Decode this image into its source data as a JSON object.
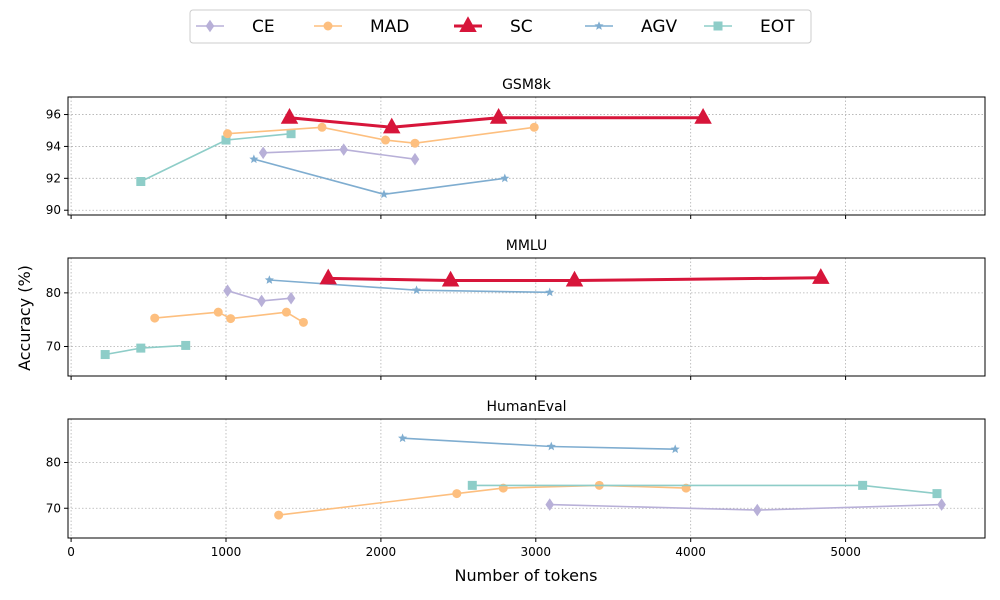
{
  "chart_data": {
    "type": "line",
    "xlabel": "Number of tokens",
    "ylabel": "Accuracy (%)",
    "xlim": [
      -20,
      5900
    ],
    "xticks": [
      0,
      1000,
      2000,
      3000,
      4000,
      5000
    ],
    "grid": true,
    "legend_position": "top-center",
    "legend": [
      {
        "name": "CE",
        "color": "#b8b0d8",
        "marker": "diamond"
      },
      {
        "name": "MAD",
        "color": "#fdbf7f",
        "marker": "circle"
      },
      {
        "name": "SC",
        "color": "#d7153a",
        "marker": "triangle"
      },
      {
        "name": "AGV",
        "color": "#7fadd0",
        "marker": "star"
      },
      {
        "name": "EOT",
        "color": "#8ecdc8",
        "marker": "square"
      }
    ],
    "panels": [
      {
        "title": "GSM8k",
        "ylim": [
          89.7,
          97.1
        ],
        "yticks": [
          90,
          92,
          94,
          96
        ],
        "series": [
          {
            "name": "EOT",
            "x": [
              450,
              1000,
              1420
            ],
            "y": [
              91.8,
              94.4,
              94.8
            ]
          },
          {
            "name": "AGV",
            "x": [
              1180,
              2020,
              2800
            ],
            "y": [
              93.2,
              91.0,
              92.0
            ]
          },
          {
            "name": "MAD",
            "x": [
              1010,
              1620,
              2030,
              2220,
              2990
            ],
            "y": [
              94.8,
              95.2,
              94.4,
              94.2,
              95.2
            ]
          },
          {
            "name": "CE",
            "x": [
              1240,
              1760,
              2220
            ],
            "y": [
              93.6,
              93.8,
              93.2
            ]
          },
          {
            "name": "SC",
            "x": [
              1410,
              2070,
              2760,
              4080
            ],
            "y": [
              95.8,
              95.2,
              95.8,
              95.8
            ]
          }
        ]
      },
      {
        "title": "MMLU",
        "ylim": [
          64.5,
          86.5
        ],
        "yticks": [
          70,
          80
        ],
        "series": [
          {
            "name": "EOT",
            "x": [
              220,
              450,
              740
            ],
            "y": [
              68.5,
              69.7,
              70.2
            ]
          },
          {
            "name": "MAD",
            "x": [
              540,
              950,
              1030,
              1390,
              1500
            ],
            "y": [
              75.3,
              76.4,
              75.2,
              76.4,
              74.5
            ]
          },
          {
            "name": "CE",
            "x": [
              1010,
              1230,
              1420
            ],
            "y": [
              80.4,
              78.5,
              79.0
            ]
          },
          {
            "name": "AGV",
            "x": [
              1280,
              2230,
              3090
            ],
            "y": [
              82.4,
              80.5,
              80.1
            ]
          },
          {
            "name": "SC",
            "x": [
              1660,
              2450,
              3250,
              4840
            ],
            "y": [
              82.7,
              82.3,
              82.3,
              82.8
            ]
          }
        ]
      },
      {
        "title": "HumanEval",
        "ylim": [
          63.5,
          89.5
        ],
        "yticks": [
          70,
          80
        ],
        "series": [
          {
            "name": "MAD",
            "x": [
              1340,
              2490,
              2790,
              3410,
              3970
            ],
            "y": [
              68.5,
              73.2,
              74.4,
              75.0,
              74.4
            ]
          },
          {
            "name": "EOT",
            "x": [
              2590,
              5110,
              5590
            ],
            "y": [
              75.0,
              75.0,
              73.2
            ]
          },
          {
            "name": "CE",
            "x": [
              3090,
              4430,
              5620
            ],
            "y": [
              70.8,
              69.6,
              70.8
            ]
          },
          {
            "name": "AGV",
            "x": [
              2140,
              3100,
              3900
            ],
            "y": [
              85.3,
              83.5,
              82.9
            ]
          }
        ]
      }
    ]
  }
}
